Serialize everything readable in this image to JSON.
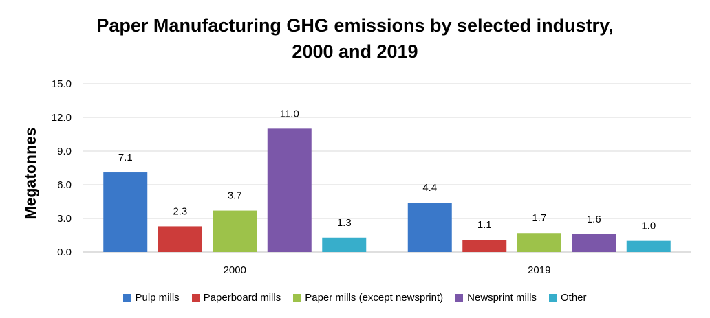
{
  "chart_data": {
    "type": "bar",
    "title_lines": [
      "Paper Manufacturing GHG emissions by selected industry,",
      "2000 and 2019"
    ],
    "title": "Paper Manufacturing GHG emissions by selected industry, 2000 and 2019",
    "xlabel": "",
    "ylabel": "Megatonnes",
    "ylim": [
      0,
      15
    ],
    "yticks": [
      0,
      3,
      6,
      9,
      12,
      15
    ],
    "ytick_labels": [
      "0.0",
      "3.0",
      "6.0",
      "9.0",
      "12.0",
      "15.0"
    ],
    "grid": true,
    "legend_position": "bottom",
    "categories": [
      "2000",
      "2019"
    ],
    "series": [
      {
        "name": "Pulp mills",
        "color": "#3A78C9",
        "values": [
          7.1,
          4.4
        ],
        "labels": [
          "7.1",
          "4.4"
        ]
      },
      {
        "name": "Paperboard mills",
        "color": "#CC3C3A",
        "values": [
          2.3,
          1.1
        ],
        "labels": [
          "2.3",
          "1.1"
        ]
      },
      {
        "name": "Paper mills (except newsprint)",
        "color": "#9DC24A",
        "values": [
          3.7,
          1.7
        ],
        "labels": [
          "3.7",
          "1.7"
        ]
      },
      {
        "name": "Newsprint mills",
        "color": "#7B57A9",
        "values": [
          11.0,
          1.6
        ],
        "labels": [
          "11.0",
          "1.6"
        ]
      },
      {
        "name": "Other",
        "color": "#37AECB",
        "values": [
          1.3,
          1.0
        ],
        "labels": [
          "1.3",
          "1.0"
        ]
      }
    ]
  }
}
